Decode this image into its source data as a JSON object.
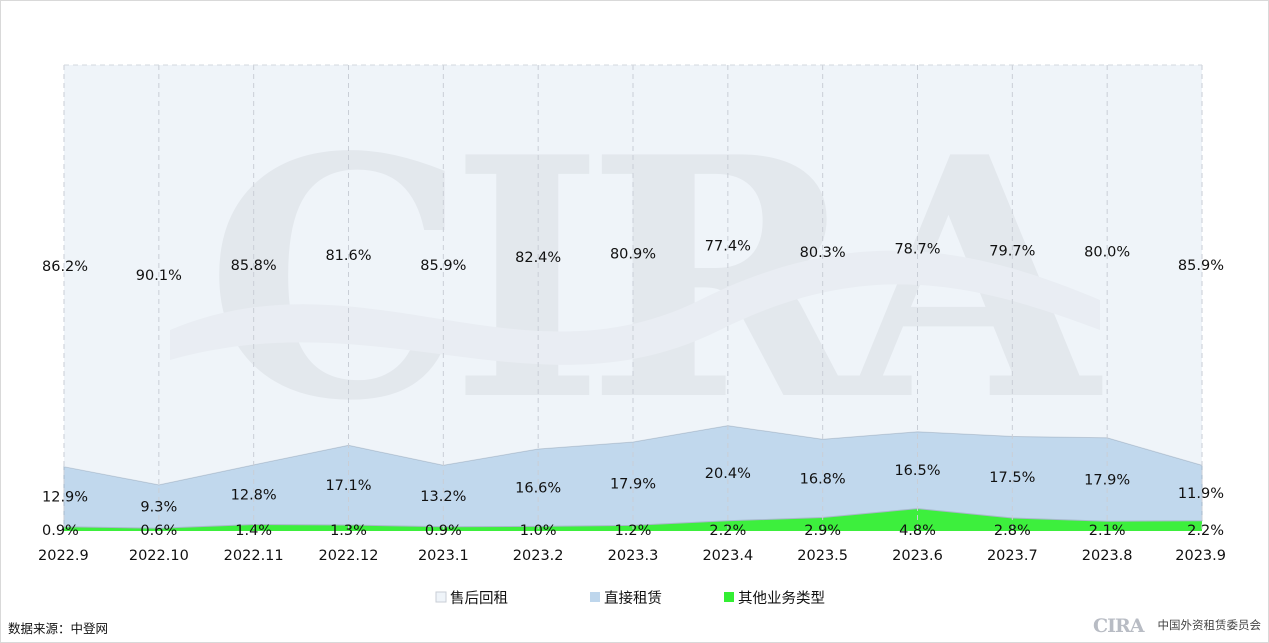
{
  "chart_data": {
    "type": "area",
    "stacked": true,
    "percent_stacked": true,
    "categories": [
      "2022.9",
      "2022.10",
      "2022.11",
      "2022.12",
      "2023.1",
      "2023.2",
      "2023.3",
      "2023.4",
      "2023.5",
      "2023.6",
      "2023.7",
      "2023.8",
      "2023.9"
    ],
    "series": [
      {
        "name": "其他业务类型",
        "color": "#33ee33",
        "values": [
          0.9,
          0.6,
          1.4,
          1.3,
          0.9,
          1.0,
          1.2,
          2.2,
          2.9,
          4.8,
          2.8,
          2.1,
          2.2
        ],
        "labels": [
          "0.9%",
          "0.6%",
          "1.4%",
          "1.3%",
          "0.9%",
          "1.0%",
          "1.2%",
          "2.2%",
          "2.9%",
          "4.8%",
          "2.8%",
          "2.1%",
          "2.2%"
        ]
      },
      {
        "name": "直接租赁",
        "color": "#bed6ec",
        "values": [
          12.9,
          9.3,
          12.8,
          17.1,
          13.2,
          16.6,
          17.9,
          20.4,
          16.8,
          16.5,
          17.5,
          17.9,
          11.9
        ],
        "labels": [
          "12.9%",
          "9.3%",
          "12.8%",
          "17.1%",
          "13.2%",
          "16.6%",
          "17.9%",
          "20.4%",
          "16.8%",
          "16.5%",
          "17.5%",
          "17.9%",
          "11.9%"
        ]
      },
      {
        "name": "售后回租",
        "color": "#eff4f9",
        "values": [
          86.2,
          90.1,
          85.8,
          81.6,
          85.9,
          82.4,
          80.9,
          77.4,
          80.3,
          78.7,
          79.7,
          80.0,
          85.9
        ],
        "labels": [
          "86.2%",
          "90.1%",
          "85.8%",
          "81.6%",
          "85.9%",
          "82.4%",
          "80.9%",
          "77.4%",
          "80.3%",
          "78.7%",
          "79.7%",
          "80.0%",
          "85.9%"
        ]
      }
    ],
    "legend_order": [
      "售后回租",
      "直接租赁",
      "其他业务类型"
    ],
    "legend_position": "bottom",
    "ylim": [
      0,
      100
    ],
    "grid": "vertical-dashed"
  },
  "source": "数据来源：中登网",
  "watermark": "CIRA",
  "footer": {
    "logo_text": "CIRA",
    "org_name": "中国外资租赁委员会"
  }
}
